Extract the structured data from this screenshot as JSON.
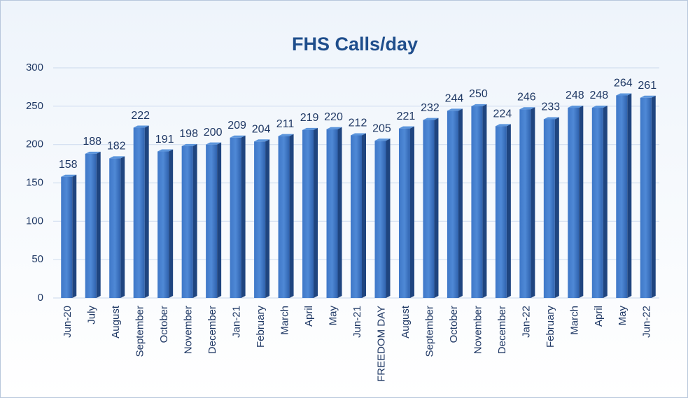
{
  "chart_data": {
    "type": "bar",
    "title": "FHS Calls/day",
    "categories": [
      "Jun-20",
      "July",
      "August",
      "September",
      "October",
      "November",
      "December",
      "Jan-21",
      "February",
      "March",
      "April",
      "May",
      "Jun-21",
      "FREEDOM DAY",
      "August",
      "September",
      "October",
      "November",
      "December",
      "Jan-22",
      "February",
      "March",
      "April",
      "May",
      "Jun-22"
    ],
    "values": [
      158,
      188,
      182,
      222,
      191,
      198,
      200,
      209,
      204,
      211,
      219,
      220,
      212,
      205,
      221,
      232,
      244,
      250,
      224,
      246,
      233,
      248,
      248,
      264,
      261
    ],
    "color": "#3a6fc0",
    "ylim": [
      0,
      300
    ],
    "yticks": [
      0,
      50,
      100,
      150,
      200,
      250,
      300
    ],
    "grid": true
  }
}
